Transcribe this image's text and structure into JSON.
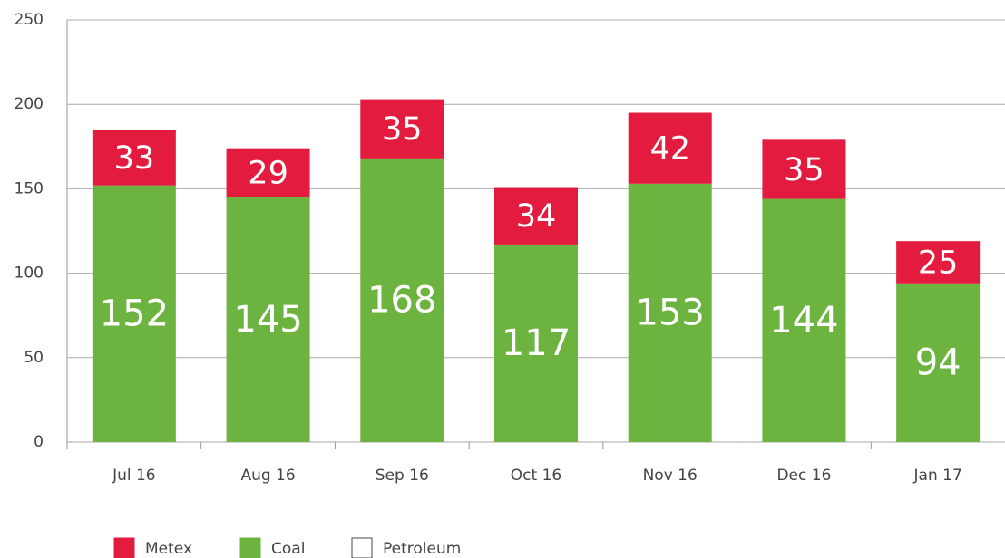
{
  "chart_data": {
    "type": "stacked_bar",
    "categories": [
      "Jul 16",
      "Aug 16",
      "Sep 16",
      "Oct 16",
      "Nov 16",
      "Dec 16",
      "Jan 17"
    ],
    "series": [
      {
        "name": "Metex",
        "color": "#e31b3f",
        "values": [
          33,
          29,
          35,
          34,
          42,
          35,
          25
        ]
      },
      {
        "name": "Coal",
        "color": "#6db33f",
        "values": [
          152,
          145,
          168,
          117,
          153,
          144,
          94
        ]
      },
      {
        "name": "Petroleum",
        "color": "#ffffff",
        "values": [
          null,
          null,
          null,
          null,
          null,
          null,
          null
        ]
      }
    ],
    "ylim": [
      0,
      250
    ],
    "yticks": [
      0,
      50,
      100,
      150,
      200,
      250
    ],
    "grid": true,
    "legend": "bottom"
  }
}
